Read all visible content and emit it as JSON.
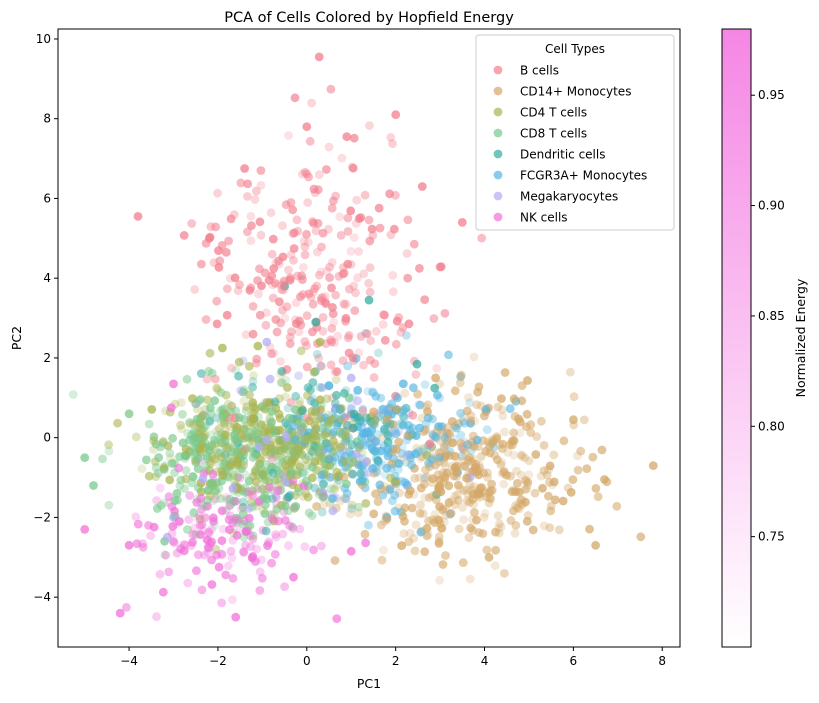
{
  "chart_data": {
    "type": "scatter",
    "title": "PCA of Cells Colored by Hopfield Energy",
    "xlabel": "PC1",
    "ylabel": "PC2",
    "xlim": [
      -5.6,
      8.4
    ],
    "ylim": [
      -5.25,
      10.25
    ],
    "xticks": [
      -4,
      -2,
      0,
      2,
      4,
      6,
      8
    ],
    "yticks": [
      -4,
      -2,
      0,
      2,
      4,
      6,
      8,
      10
    ],
    "grid": false,
    "legend": {
      "title": "Cell Types",
      "placement": "top-right"
    },
    "colorbar": {
      "label": "Normalized Energy",
      "range": [
        0.7,
        0.98
      ],
      "ticks": [
        0.75,
        0.8,
        0.85,
        0.9,
        0.95
      ],
      "tick_labels": [
        "0.75",
        "0.80",
        "0.85",
        "0.90",
        "0.95"
      ],
      "colormap": [
        "#ffffff",
        "#f586e4"
      ]
    },
    "series": [
      {
        "name": "B cells",
        "color": "#f37f8e",
        "cluster": {
          "mean": [
            0.1,
            3.9
          ],
          "sd": [
            1.15,
            1.55
          ],
          "n": 300,
          "seed": 11
        },
        "points": [
          [
            0.28,
            9.55
          ],
          [
            0.0,
            7.8
          ],
          [
            0.9,
            7.55
          ],
          [
            2.0,
            8.1
          ],
          [
            -3.8,
            5.55
          ],
          [
            -1.4,
            6.75
          ],
          [
            3.5,
            5.4
          ],
          [
            2.6,
            6.3
          ],
          [
            1.0,
            0.6
          ]
        ]
      },
      {
        "name": "CD14+ Monocytes",
        "color": "#d4a868",
        "cluster": {
          "mean": [
            3.6,
            -0.95
          ],
          "sd": [
            1.15,
            0.95
          ],
          "n": 420,
          "seed": 23
        },
        "points": [
          [
            7.8,
            -0.7
          ],
          [
            6.7,
            -1.05
          ],
          [
            6.5,
            -2.7
          ],
          [
            2.9,
            1.5
          ],
          [
            4.1,
            -3.0
          ],
          [
            6.0,
            0.45
          ]
        ]
      },
      {
        "name": "CD4 T cells",
        "color": "#a8b44e",
        "cluster": {
          "mean": [
            -0.8,
            -0.15
          ],
          "sd": [
            1.25,
            0.8
          ],
          "n": 380,
          "seed": 37
        },
        "points": [
          [
            -1.9,
            2.25
          ],
          [
            -1.1,
            2.3
          ],
          [
            0.3,
            2.4
          ]
        ]
      },
      {
        "name": "CD8 T cells",
        "color": "#79c98c",
        "cluster": {
          "mean": [
            -1.4,
            -0.55
          ],
          "sd": [
            1.15,
            0.85
          ],
          "n": 330,
          "seed": 41
        },
        "points": [
          [
            -5.0,
            -0.5
          ],
          [
            -4.8,
            -1.2
          ],
          [
            -4.0,
            0.6
          ],
          [
            -3.2,
            -2.6
          ]
        ]
      },
      {
        "name": "Dendritic cells",
        "color": "#35ada0",
        "cluster": {
          "mean": [
            0.4,
            0.05
          ],
          "sd": [
            1.2,
            0.9
          ],
          "n": 90,
          "seed": 53
        },
        "points": [
          [
            1.4,
            3.45
          ],
          [
            -0.5,
            3.8
          ],
          [
            0.2,
            2.9
          ]
        ]
      },
      {
        "name": "FCGR3A+ Monocytes",
        "color": "#56b6e2",
        "cluster": {
          "mean": [
            1.75,
            -0.05
          ],
          "sd": [
            1.0,
            0.8
          ],
          "n": 230,
          "seed": 67
        },
        "points": [
          [
            1.2,
            -1.1
          ],
          [
            0.5,
            1.3
          ],
          [
            1.8,
            -2.0
          ]
        ]
      },
      {
        "name": "Megakaryocytes",
        "color": "#b3acf3",
        "cluster": {
          "mean": [
            0.0,
            -0.4
          ],
          "sd": [
            1.4,
            1.0
          ],
          "n": 55,
          "seed": 79
        },
        "points": [
          [
            -0.9,
            2.4
          ],
          [
            1.0,
            1.5
          ],
          [
            -3.0,
            -2.0
          ]
        ]
      },
      {
        "name": "NK cells",
        "color": "#f170d9",
        "cluster": {
          "mean": [
            -1.9,
            -2.35
          ],
          "sd": [
            0.95,
            0.85
          ],
          "n": 170,
          "seed": 97
        },
        "points": [
          [
            -3.05,
            0.75
          ],
          [
            -4.2,
            -4.4
          ],
          [
            -1.6,
            -4.5
          ],
          [
            -0.3,
            -3.5
          ],
          [
            1.0,
            -2.85
          ],
          [
            -5.0,
            -2.3
          ],
          [
            -3.0,
            1.35
          ],
          [
            -4.0,
            -2.7
          ]
        ]
      }
    ]
  }
}
